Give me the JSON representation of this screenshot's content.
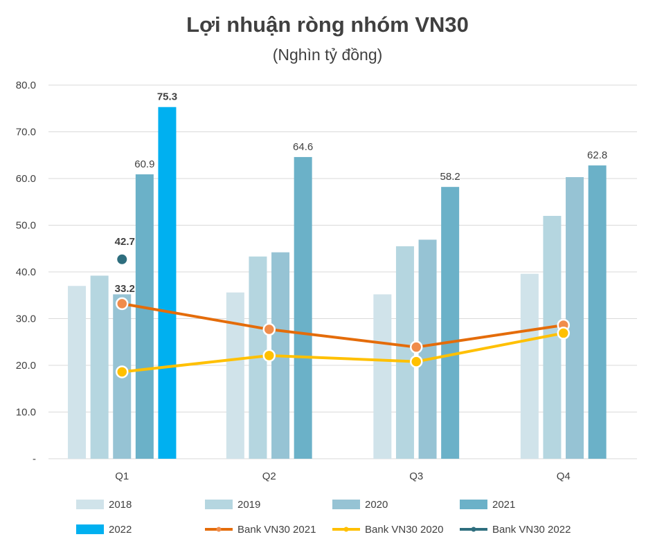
{
  "chart_data": {
    "type": "bar",
    "title": "Lợi nhuận ròng nhóm VN30",
    "subtitle": "(Nghìn tỷ đồng)",
    "categories": [
      "Q1",
      "Q2",
      "Q3",
      "Q4"
    ],
    "y_ticks": [
      "-",
      "10.0",
      "20.0",
      "30.0",
      "40.0",
      "50.0",
      "60.0",
      "70.0",
      "80.0"
    ],
    "ylim": [
      0,
      80
    ],
    "grid": true,
    "legend_position": "bottom",
    "series": [
      {
        "name": "2018",
        "kind": "bar",
        "color": "#d0e3ea",
        "values": [
          37.0,
          35.6,
          35.2,
          39.6
        ]
      },
      {
        "name": "2019",
        "kind": "bar",
        "color": "#b5d6e0",
        "values": [
          39.2,
          43.3,
          45.5,
          52.0
        ]
      },
      {
        "name": "2020",
        "kind": "bar",
        "color": "#96c3d4",
        "values": [
          35.2,
          44.2,
          46.9,
          60.3
        ]
      },
      {
        "name": "2021",
        "kind": "bar",
        "color": "#6bb1c8",
        "values": [
          60.9,
          64.6,
          58.2,
          62.8
        ],
        "labels": [
          "60.9",
          "64.6",
          "58.2",
          "62.8"
        ]
      },
      {
        "name": "2022",
        "kind": "bar",
        "color": "#00b0f0",
        "values": [
          75.3,
          null,
          null,
          null
        ],
        "labels": [
          "75.3",
          null,
          null,
          null
        ],
        "label_bold": true
      },
      {
        "name": "Bank VN30 2021",
        "kind": "line",
        "color": "#e46c0a",
        "marker_color": "#f08c4b",
        "values": [
          33.2,
          27.7,
          23.9,
          28.6
        ],
        "labels": [
          "33.2",
          null,
          null,
          null
        ],
        "label_bold": true
      },
      {
        "name": "Bank VN30 2020",
        "kind": "line",
        "color": "#ffc000",
        "marker_color": "#ffc000",
        "values": [
          18.6,
          22.1,
          20.8,
          26.9
        ]
      },
      {
        "name": "Bank VN30 2022",
        "kind": "line",
        "color": "#2e6e7e",
        "marker_color": "#2e6e7e",
        "values": [
          42.7,
          null,
          null,
          null
        ],
        "labels": [
          "42.7",
          null,
          null,
          null
        ],
        "label_bold": true
      }
    ]
  }
}
